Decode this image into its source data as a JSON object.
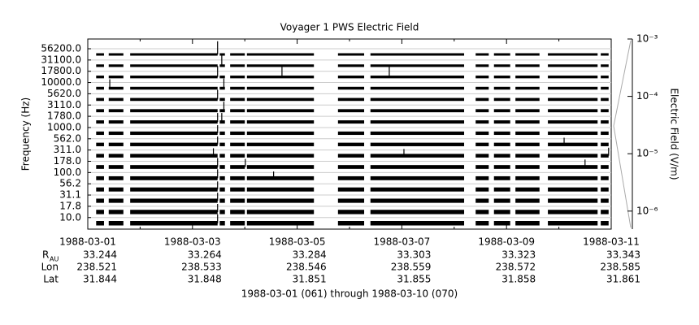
{
  "chart_data": {
    "type": "channel-stack",
    "title": "Voyager 1 PWS Electric Field",
    "ylabel": "Frequency (Hz)",
    "y2label": "Electric Field (V/m)",
    "color": "#000000",
    "xlim": [
      0,
      10
    ],
    "xticks": [
      {
        "value": 0,
        "label": "1988-03-01"
      },
      {
        "value": 2,
        "label": "1988-03-03"
      },
      {
        "value": 4,
        "label": "1988-03-05"
      },
      {
        "value": 6,
        "label": "1988-03-07"
      },
      {
        "value": 8,
        "label": "1988-03-09"
      },
      {
        "value": 10,
        "label": "1988-03-11"
      }
    ],
    "xminorticks": [
      1,
      3,
      5,
      7,
      9
    ],
    "y2log": true,
    "y2lim": [
      4.85e-07,
      0.001
    ],
    "y2ticks": [
      {
        "value": 0.001,
        "label": "10⁻³"
      },
      {
        "value": 0.0001,
        "label": "10⁻⁴"
      },
      {
        "value": 1e-05,
        "label": "10⁻⁵"
      },
      {
        "value": 1e-06,
        "label": "10⁻⁶"
      }
    ],
    "coverage": [
      [
        0.16,
        0.31
      ],
      [
        0.4,
        0.68
      ],
      [
        0.81,
        2.48
      ],
      [
        2.52,
        2.62
      ],
      [
        2.72,
        3.0
      ],
      [
        3.04,
        4.32
      ],
      [
        4.78,
        5.28
      ],
      [
        5.4,
        7.19
      ],
      [
        7.41,
        7.66
      ],
      [
        7.76,
        8.07
      ],
      [
        8.17,
        8.63
      ],
      [
        8.79,
        9.74
      ],
      [
        9.8,
        9.95
      ]
    ],
    "series": [
      {
        "name": "56200.0",
        "x": [
          2.48
        ],
        "values": [
          3e-05
        ]
      },
      {
        "name": "31100.0",
        "x": [
          2.56
        ],
        "values": [
          1.2e-05
        ]
      },
      {
        "name": "17800.0",
        "x": [
          2.48,
          3.71,
          5.76
        ],
        "values": [
          1.5e-05,
          1.2e-05,
          1.2e-05
        ]
      },
      {
        "name": "10000.0",
        "x": [
          0.42,
          2.6
        ],
        "values": [
          8e-06,
          1e-05
        ]
      },
      {
        "name": "5620.0",
        "x": [
          2.48
        ],
        "values": [
          1e-05
        ]
      },
      {
        "name": "3110.0",
        "x": [
          2.6
        ],
        "values": [
          8e-06
        ]
      },
      {
        "name": "1780.0",
        "x": [
          2.48,
          2.56
        ],
        "values": [
          8e-06,
          8e-06
        ]
      },
      {
        "name": "1000.0",
        "x": [
          2.48
        ],
        "values": [
          6e-06
        ]
      },
      {
        "name": "562.0",
        "x": [
          2.48,
          9.1
        ],
        "values": [
          6e-06,
          4e-06
        ]
      },
      {
        "name": "311.0",
        "x": [
          2.4,
          6.04,
          9.95
        ],
        "values": [
          5e-06,
          4e-06,
          6e-06
        ]
      },
      {
        "name": "178.0",
        "x": [
          2.48,
          3.01,
          9.5
        ],
        "values": [
          8e-06,
          6e-06,
          5e-06
        ]
      },
      {
        "name": "100.0",
        "x": [
          2.48,
          3.55
        ],
        "values": [
          8e-06,
          4e-06
        ]
      },
      {
        "name": "56.2",
        "x": [
          2.48
        ],
        "values": [
          6e-06
        ]
      },
      {
        "name": "31.1",
        "x": [
          2.48
        ],
        "values": [
          6e-06
        ]
      },
      {
        "name": "17.8",
        "x": [
          2.48
        ],
        "values": [
          6e-06
        ]
      },
      {
        "name": "10.0",
        "x": [
          2.48
        ],
        "values": [
          8e-06
        ]
      }
    ],
    "ephemeris": [
      {
        "label": "R",
        "subscript": "AU",
        "values": [
          33.244,
          33.264,
          33.284,
          33.303,
          33.323,
          33.343
        ]
      },
      {
        "label": "Lon",
        "values": [
          238.521,
          238.533,
          238.546,
          238.559,
          238.572,
          238.585
        ]
      },
      {
        "label": "Lat",
        "values": [
          31.844,
          31.848,
          31.851,
          31.855,
          31.858,
          31.861
        ]
      }
    ],
    "footer": "1988-03-01 (061) through 1988-03-10 (070)"
  }
}
